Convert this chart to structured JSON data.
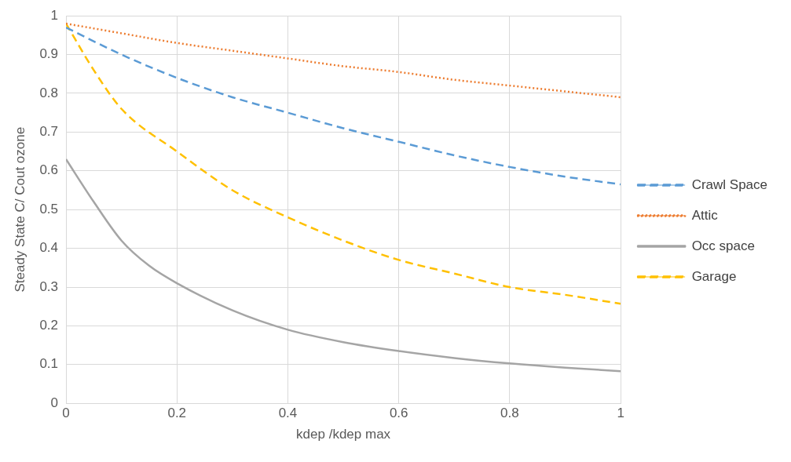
{
  "chart_data": {
    "type": "line",
    "xlabel": "kdep /kdep max",
    "ylabel": "Steady State C/ Cout ozone",
    "xlim": [
      0,
      1
    ],
    "xticks": [
      0,
      0.2,
      0.4,
      0.6,
      0.8,
      1
    ],
    "ylim": [
      0,
      1
    ],
    "yticks": [
      0,
      0.1,
      0.2,
      0.3,
      0.4,
      0.5,
      0.6,
      0.7,
      0.8,
      0.9,
      1
    ],
    "grid": true,
    "legend": "right",
    "marker": "none",
    "series": [
      {
        "name": "Crawl Space",
        "color": "#5b9bd5",
        "line_style": "dashed",
        "x": [
          0,
          0.1,
          0.2,
          0.3,
          0.4,
          0.5,
          0.6,
          0.7,
          0.8,
          0.9,
          1
        ],
        "values": [
          0.97,
          0.9,
          0.84,
          0.79,
          0.75,
          0.71,
          0.675,
          0.64,
          0.61,
          0.585,
          0.565
        ]
      },
      {
        "name": "Attic",
        "color": "#ed7d31",
        "line_style": "dotted",
        "x": [
          0,
          0.1,
          0.2,
          0.3,
          0.4,
          0.5,
          0.6,
          0.7,
          0.8,
          0.9,
          1
        ],
        "values": [
          0.98,
          0.955,
          0.93,
          0.91,
          0.89,
          0.87,
          0.855,
          0.835,
          0.82,
          0.805,
          0.79
        ]
      },
      {
        "name": "Occ space",
        "color": "#a5a5a5",
        "line_style": "solid",
        "x": [
          0,
          0.05,
          0.1,
          0.15,
          0.2,
          0.3,
          0.4,
          0.5,
          0.6,
          0.7,
          0.8,
          0.9,
          1
        ],
        "values": [
          0.63,
          0.52,
          0.42,
          0.355,
          0.31,
          0.24,
          0.19,
          0.158,
          0.135,
          0.117,
          0.103,
          0.092,
          0.083
        ]
      },
      {
        "name": "Garage",
        "color": "#ffc000",
        "line_style": "dashed",
        "x": [
          0,
          0.05,
          0.1,
          0.2,
          0.3,
          0.4,
          0.5,
          0.6,
          0.7,
          0.8,
          0.9,
          1
        ],
        "values": [
          0.98,
          0.86,
          0.76,
          0.65,
          0.55,
          0.48,
          0.42,
          0.37,
          0.335,
          0.3,
          0.28,
          0.257
        ]
      }
    ]
  }
}
